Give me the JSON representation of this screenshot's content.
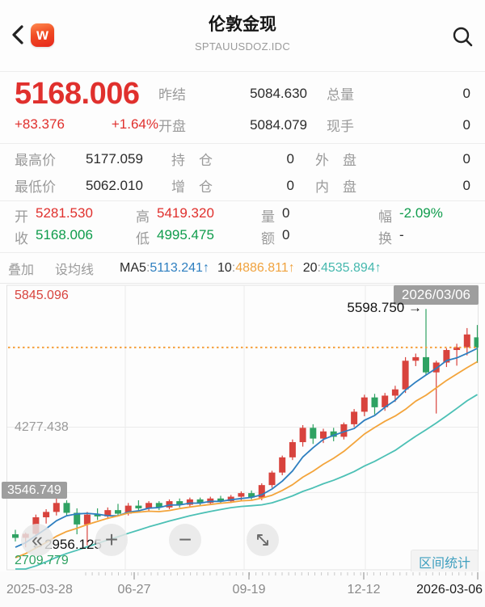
{
  "header": {
    "title": "伦敦金现",
    "subtitle": "SPTAUUSDOZ.IDC",
    "logo_letter": "w"
  },
  "quote": {
    "price": "5168.006",
    "change": "+83.376",
    "change_percent": "+1.64%",
    "up_text_color": "#e0302d",
    "down_text_color": "#0f9c4c"
  },
  "stats": {
    "top_rows": [
      [
        {
          "label": "昨结",
          "value": "5084.630"
        },
        {
          "label": "总量",
          "value": "0"
        }
      ],
      [
        {
          "label": "开盘",
          "value": "5084.079"
        },
        {
          "label": "现手",
          "value": "0"
        }
      ]
    ],
    "mid_rows": [
      [
        {
          "label": "最高价",
          "value": "5177.059"
        },
        {
          "label": "持　仓",
          "value": "0"
        },
        {
          "label": "外　盘",
          "value": "0"
        }
      ],
      [
        {
          "label": "最低价",
          "value": "5062.010"
        },
        {
          "label": "增　仓",
          "value": "0"
        },
        {
          "label": "内　盘",
          "value": "0"
        }
      ]
    ],
    "ohlc_rows": [
      [
        {
          "label": "开",
          "value": "5281.530",
          "tone": "up"
        },
        {
          "label": "高",
          "value": "5419.320",
          "tone": "up"
        },
        {
          "label": "量",
          "value": "0",
          "tone": "plain"
        },
        {
          "label": "幅",
          "value": "-2.09%",
          "tone": "down"
        }
      ],
      [
        {
          "label": "收",
          "value": "5168.006",
          "tone": "down"
        },
        {
          "label": "低",
          "value": "4995.475",
          "tone": "down"
        },
        {
          "label": "额",
          "value": "0",
          "tone": "plain"
        },
        {
          "label": "换",
          "value": "-",
          "tone": "plain"
        }
      ]
    ]
  },
  "ma_bar": {
    "overlay_label": "叠加",
    "set_ma_label": "设均线",
    "items": [
      {
        "prefix": "MA5",
        "value": "5113.241",
        "arrow": "↑",
        "color": "#2e7fc0"
      },
      {
        "prefix": "10",
        "value": "4886.811",
        "arrow": "↑",
        "color": "#f0a33f"
      },
      {
        "prefix": "20",
        "value": "4535.894",
        "arrow": "↑",
        "color": "#45b8ae"
      }
    ]
  },
  "chart_overlay": {
    "date_badge": "2026/03/06",
    "range_stat_label": "区间统计",
    "buttons": [
      {
        "name": "collapse-left",
        "glyph": "«"
      },
      {
        "name": "zoom-in",
        "glyph": "+"
      },
      {
        "name": "zoom-out",
        "glyph": "−"
      },
      {
        "name": "expand",
        "glyph": "⤡"
      }
    ]
  },
  "chart_data": {
    "type": "candlestick",
    "symbol": "SPTAUUSDOZ.IDC",
    "ylim": [
      2709.779,
      5845.096
    ],
    "y_axis_labels": [
      {
        "text": "5845.096",
        "style": "red"
      },
      {
        "text": "4277.438",
        "style": "gray"
      },
      {
        "text": "3546.749",
        "style": "badge"
      },
      {
        "text": "2709.779",
        "style": "green"
      }
    ],
    "gridline_values": [
      4277.438,
      3546.749
    ],
    "current_price_line": 5168.006,
    "current_price_line_color": "#f5a03c",
    "up_color": "#d8433d",
    "down_color": "#2fa263",
    "grid_color": "#ebebeb",
    "border_color": "#e3e3e3",
    "annotations": [
      {
        "text": "5598.750",
        "arrow": "→",
        "price": 5598.75
      },
      {
        "text": "2956.125",
        "arrow": "←",
        "price": 2956.125
      }
    ],
    "x_tick_labels": [
      "2025-03-28",
      "06-27",
      "09-19",
      "12-12",
      "2026-03-06"
    ],
    "ma_lines": [
      {
        "name": "MA5",
        "period": 5,
        "color": "#2e7fc0",
        "last_value": 5113.241
      },
      {
        "name": "MA10",
        "period": 10,
        "color": "#f3a43b",
        "last_value": 4886.811
      },
      {
        "name": "MA20",
        "period": 20,
        "color": "#4cc0b5",
        "last_value": 4535.894
      }
    ],
    "seed_closes": [
      2320,
      2350,
      2375,
      2400,
      2430,
      2455,
      2480,
      2510,
      2540,
      2565,
      2595,
      2625,
      2660,
      2700,
      2740,
      2785,
      2830,
      2880,
      2935,
      2990
    ],
    "candles": [
      [
        3080,
        3130,
        3000,
        3040
      ],
      [
        3040,
        3100,
        2935,
        3085
      ],
      [
        3085,
        3300,
        3070,
        3270
      ],
      [
        3270,
        3360,
        3200,
        3330
      ],
      [
        3330,
        3495,
        3290,
        3430
      ],
      [
        3430,
        3460,
        3290,
        3320
      ],
      [
        3320,
        3370,
        3080,
        3190
      ],
      [
        3190,
        3330,
        2956.125,
        3300
      ],
      [
        3300,
        3370,
        3240,
        3280
      ],
      [
        3280,
        3380,
        3250,
        3350
      ],
      [
        3350,
        3420,
        3280,
        3310
      ],
      [
        3310,
        3430,
        3290,
        3400
      ],
      [
        3400,
        3460,
        3340,
        3370
      ],
      [
        3370,
        3450,
        3330,
        3430
      ],
      [
        3430,
        3450,
        3350,
        3380
      ],
      [
        3380,
        3470,
        3360,
        3450
      ],
      [
        3450,
        3480,
        3380,
        3410
      ],
      [
        3410,
        3490,
        3390,
        3470
      ],
      [
        3470,
        3490,
        3400,
        3430
      ],
      [
        3430,
        3500,
        3410,
        3480
      ],
      [
        3480,
        3510,
        3420,
        3450
      ],
      [
        3450,
        3520,
        3430,
        3500
      ],
      [
        3500,
        3560,
        3460,
        3540
      ],
      [
        3540,
        3570,
        3470,
        3490
      ],
      [
        3490,
        3650,
        3460,
        3630
      ],
      [
        3630,
        3790,
        3600,
        3770
      ],
      [
        3770,
        3960,
        3740,
        3940
      ],
      [
        3940,
        4140,
        3910,
        4110
      ],
      [
        4110,
        4300,
        4060,
        4270
      ],
      [
        4270,
        4310,
        4090,
        4150
      ],
      [
        4150,
        4260,
        4100,
        4230
      ],
      [
        4230,
        4270,
        4120,
        4170
      ],
      [
        4170,
        4330,
        4140,
        4310
      ],
      [
        4310,
        4480,
        4280,
        4450
      ],
      [
        4450,
        4640,
        4400,
        4610
      ],
      [
        4610,
        4650,
        4420,
        4500
      ],
      [
        4500,
        4660,
        4460,
        4630
      ],
      [
        4630,
        4740,
        4560,
        4700
      ],
      [
        4700,
        5060,
        4660,
        5020
      ],
      [
        5020,
        5100,
        4960,
        5060
      ],
      [
        5060,
        5598.75,
        4860,
        4890
      ],
      [
        4890,
        5020,
        4430,
        5000
      ],
      [
        5000,
        5160,
        4950,
        5140
      ],
      [
        5140,
        5210,
        4965,
        5170
      ],
      [
        5170,
        5385,
        5080,
        5314
      ],
      [
        5281.53,
        5419.32,
        4995.475,
        5168.006
      ]
    ]
  }
}
